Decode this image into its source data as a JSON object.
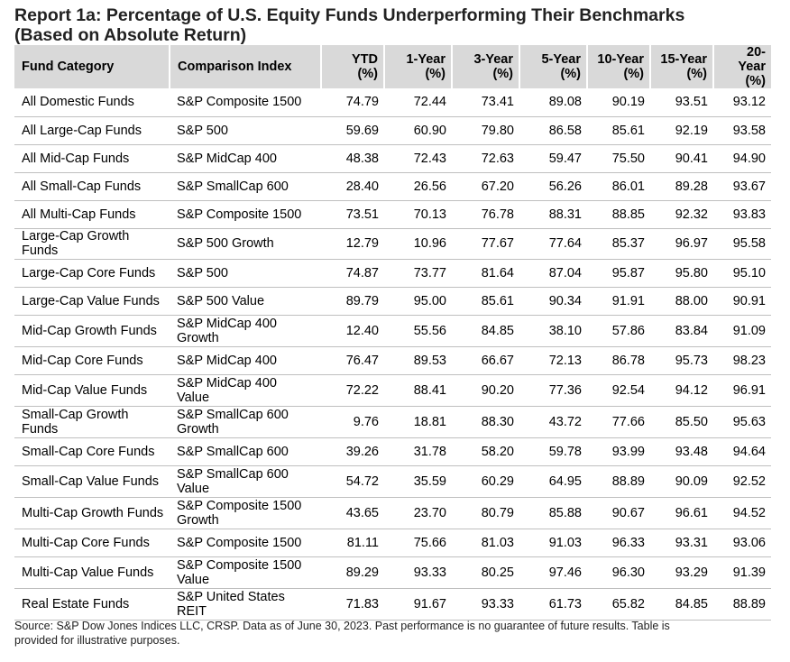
{
  "title_line1": "Report 1a: Percentage of U.S. Equity Funds Underperforming Their Benchmarks",
  "title_line2": "(Based on Absolute Return)",
  "headers": {
    "category": "Fund Category",
    "index": "Comparison Index",
    "ytd": [
      "YTD",
      "(%)"
    ],
    "y1": [
      "1-Year",
      "(%)"
    ],
    "y3": [
      "3-Year",
      "(%)"
    ],
    "y5": [
      "5-Year",
      "(%)"
    ],
    "y10": [
      "10-Year",
      "(%)"
    ],
    "y15": [
      "15-Year",
      "(%)"
    ],
    "y20": [
      "20-Year",
      "(%)"
    ]
  },
  "rows": [
    {
      "category": [
        "All Domestic Funds"
      ],
      "index": [
        "S&P Composite 1500"
      ],
      "values": [
        "74.79",
        "72.44",
        "73.41",
        "89.08",
        "90.19",
        "93.51",
        "93.12"
      ]
    },
    {
      "category": [
        "All Large-Cap Funds"
      ],
      "index": [
        "S&P 500"
      ],
      "values": [
        "59.69",
        "60.90",
        "79.80",
        "86.58",
        "85.61",
        "92.19",
        "93.58"
      ]
    },
    {
      "category": [
        "All Mid-Cap Funds"
      ],
      "index": [
        "S&P MidCap 400"
      ],
      "values": [
        "48.38",
        "72.43",
        "72.63",
        "59.47",
        "75.50",
        "90.41",
        "94.90"
      ]
    },
    {
      "category": [
        "All Small-Cap Funds"
      ],
      "index": [
        "S&P SmallCap 600"
      ],
      "values": [
        "28.40",
        "26.56",
        "67.20",
        "56.26",
        "86.01",
        "89.28",
        "93.67"
      ]
    },
    {
      "category": [
        "All Multi-Cap Funds"
      ],
      "index": [
        "S&P Composite 1500"
      ],
      "values": [
        "73.51",
        "70.13",
        "76.78",
        "88.31",
        "88.85",
        "92.32",
        "93.83"
      ]
    },
    {
      "category": [
        "Large-Cap Growth",
        "Funds"
      ],
      "index": [
        "S&P 500 Growth"
      ],
      "values": [
        "12.79",
        "10.96",
        "77.67",
        "77.64",
        "85.37",
        "96.97",
        "95.58"
      ]
    },
    {
      "category": [
        "Large-Cap Core Funds"
      ],
      "index": [
        "S&P 500"
      ],
      "values": [
        "74.87",
        "73.77",
        "81.64",
        "87.04",
        "95.87",
        "95.80",
        "95.10"
      ]
    },
    {
      "category": [
        "Large-Cap Value Funds"
      ],
      "index": [
        "S&P 500 Value"
      ],
      "values": [
        "89.79",
        "95.00",
        "85.61",
        "90.34",
        "91.91",
        "88.00",
        "90.91"
      ]
    },
    {
      "category": [
        "Mid-Cap Growth Funds"
      ],
      "index": [
        "S&P MidCap 400",
        "Growth"
      ],
      "values": [
        "12.40",
        "55.56",
        "84.85",
        "38.10",
        "57.86",
        "83.84",
        "91.09"
      ]
    },
    {
      "category": [
        "Mid-Cap Core Funds"
      ],
      "index": [
        "S&P MidCap 400"
      ],
      "values": [
        "76.47",
        "89.53",
        "66.67",
        "72.13",
        "86.78",
        "95.73",
        "98.23"
      ]
    },
    {
      "category": [
        "Mid-Cap Value Funds"
      ],
      "index": [
        "S&P MidCap 400",
        "Value"
      ],
      "values": [
        "72.22",
        "88.41",
        "90.20",
        "77.36",
        "92.54",
        "94.12",
        "96.91"
      ]
    },
    {
      "category": [
        "Small-Cap Growth",
        "Funds"
      ],
      "index": [
        "S&P SmallCap 600",
        "Growth"
      ],
      "values": [
        "9.76",
        "18.81",
        "88.30",
        "43.72",
        "77.66",
        "85.50",
        "95.63"
      ]
    },
    {
      "category": [
        "Small-Cap Core Funds"
      ],
      "index": [
        "S&P SmallCap 600"
      ],
      "values": [
        "39.26",
        "31.78",
        "58.20",
        "59.78",
        "93.99",
        "93.48",
        "94.64"
      ]
    },
    {
      "category": [
        "Small-Cap Value Funds"
      ],
      "index": [
        "S&P SmallCap 600",
        "Value"
      ],
      "values": [
        "54.72",
        "35.59",
        "60.29",
        "64.95",
        "88.89",
        "90.09",
        "92.52"
      ]
    },
    {
      "category": [
        "Multi-Cap Growth Funds"
      ],
      "index": [
        "S&P Composite 1500",
        "Growth"
      ],
      "values": [
        "43.65",
        "23.70",
        "80.79",
        "85.88",
        "90.67",
        "96.61",
        "94.52"
      ]
    },
    {
      "category": [
        "Multi-Cap Core Funds"
      ],
      "index": [
        "S&P Composite 1500"
      ],
      "values": [
        "81.11",
        "75.66",
        "81.03",
        "91.03",
        "96.33",
        "93.31",
        "93.06"
      ]
    },
    {
      "category": [
        "Multi-Cap Value Funds"
      ],
      "index": [
        "S&P Composite 1500",
        "Value"
      ],
      "values": [
        "89.29",
        "93.33",
        "80.25",
        "97.46",
        "96.30",
        "93.29",
        "91.39"
      ]
    },
    {
      "category": [
        "Real Estate Funds"
      ],
      "index": [
        "S&P United States",
        "REIT"
      ],
      "values": [
        "71.83",
        "91.67",
        "93.33",
        "61.73",
        "65.82",
        "84.85",
        "88.89"
      ]
    }
  ],
  "source_line1": "Source: S&P Dow Jones Indices LLC, CRSP.  Data as of June 30, 2023.  Past performance is no guarantee of future results.  Table is",
  "source_line2": "provided for illustrative purposes."
}
